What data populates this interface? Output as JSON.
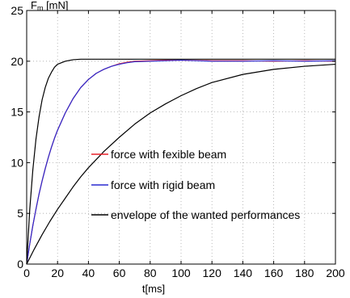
{
  "chart_data": {
    "type": "line",
    "ylabel_main": "F",
    "ylabel_sub": "m",
    "ylabel_unit": " [mN]",
    "xlabel": "t[ms]",
    "xlim": [
      0,
      200
    ],
    "ylim": [
      0,
      25
    ],
    "xticks": [
      0,
      20,
      40,
      60,
      80,
      100,
      120,
      140,
      160,
      180,
      200
    ],
    "yticks": [
      0,
      5,
      10,
      15,
      20,
      25
    ],
    "grid": true,
    "legend_position": "center-right",
    "series": [
      {
        "name": "force with fexible beam",
        "color": "#e8202a",
        "x": [
          0,
          2,
          4,
          6,
          8,
          10,
          12,
          14,
          16,
          18,
          20,
          25,
          30,
          35,
          40,
          45,
          50,
          55,
          60,
          65,
          70,
          80,
          90,
          100,
          120,
          140,
          160,
          180,
          200
        ],
        "y": [
          0,
          2.0,
          3.8,
          5.4,
          6.9,
          8.2,
          9.4,
          10.5,
          11.5,
          12.4,
          13.2,
          14.9,
          16.3,
          17.4,
          18.2,
          18.8,
          19.2,
          19.5,
          19.75,
          19.9,
          20.0,
          20.05,
          20.1,
          20.1,
          20.05,
          20.05,
          20.0,
          20.05,
          20.0
        ]
      },
      {
        "name": "force with rigid beam",
        "color": "#2a2ad0",
        "x": [
          0,
          2,
          4,
          6,
          8,
          10,
          12,
          14,
          16,
          18,
          20,
          25,
          30,
          35,
          40,
          45,
          50,
          55,
          60,
          65,
          70,
          80,
          90,
          100,
          120,
          140,
          160,
          180,
          200
        ],
        "y": [
          0,
          2.0,
          3.8,
          5.4,
          6.9,
          8.2,
          9.4,
          10.5,
          11.5,
          12.4,
          13.2,
          14.9,
          16.3,
          17.4,
          18.2,
          18.8,
          19.2,
          19.5,
          19.7,
          19.85,
          19.95,
          20.0,
          20.05,
          20.1,
          20.0,
          20.0,
          20.05,
          20.0,
          20.05
        ]
      },
      {
        "name": "envelope of the wanted performances",
        "color": "#000000",
        "x": [
          0,
          2,
          4,
          6,
          8,
          10,
          12,
          14,
          16,
          18,
          20,
          25,
          30,
          35,
          40,
          50,
          60,
          80,
          100,
          120,
          140,
          160,
          180,
          200
        ],
        "y": [
          0,
          5.4,
          9.3,
          12.3,
          14.5,
          16.2,
          17.4,
          18.3,
          18.9,
          19.4,
          19.7,
          20.0,
          20.15,
          20.2,
          20.2,
          20.2,
          20.2,
          20.2,
          20.2,
          20.2,
          20.2,
          20.2,
          20.2,
          20.2
        ]
      },
      {
        "name": "",
        "color": "#000000",
        "x": [
          0,
          5,
          10,
          15,
          20,
          25,
          30,
          35,
          40,
          50,
          60,
          70,
          80,
          90,
          100,
          110,
          120,
          140,
          160,
          180,
          200
        ],
        "y": [
          0,
          1.5,
          2.9,
          4.2,
          5.4,
          6.5,
          7.6,
          8.6,
          9.5,
          11.1,
          12.5,
          13.8,
          14.9,
          15.8,
          16.6,
          17.3,
          17.9,
          18.7,
          19.2,
          19.5,
          19.7
        ]
      }
    ]
  }
}
